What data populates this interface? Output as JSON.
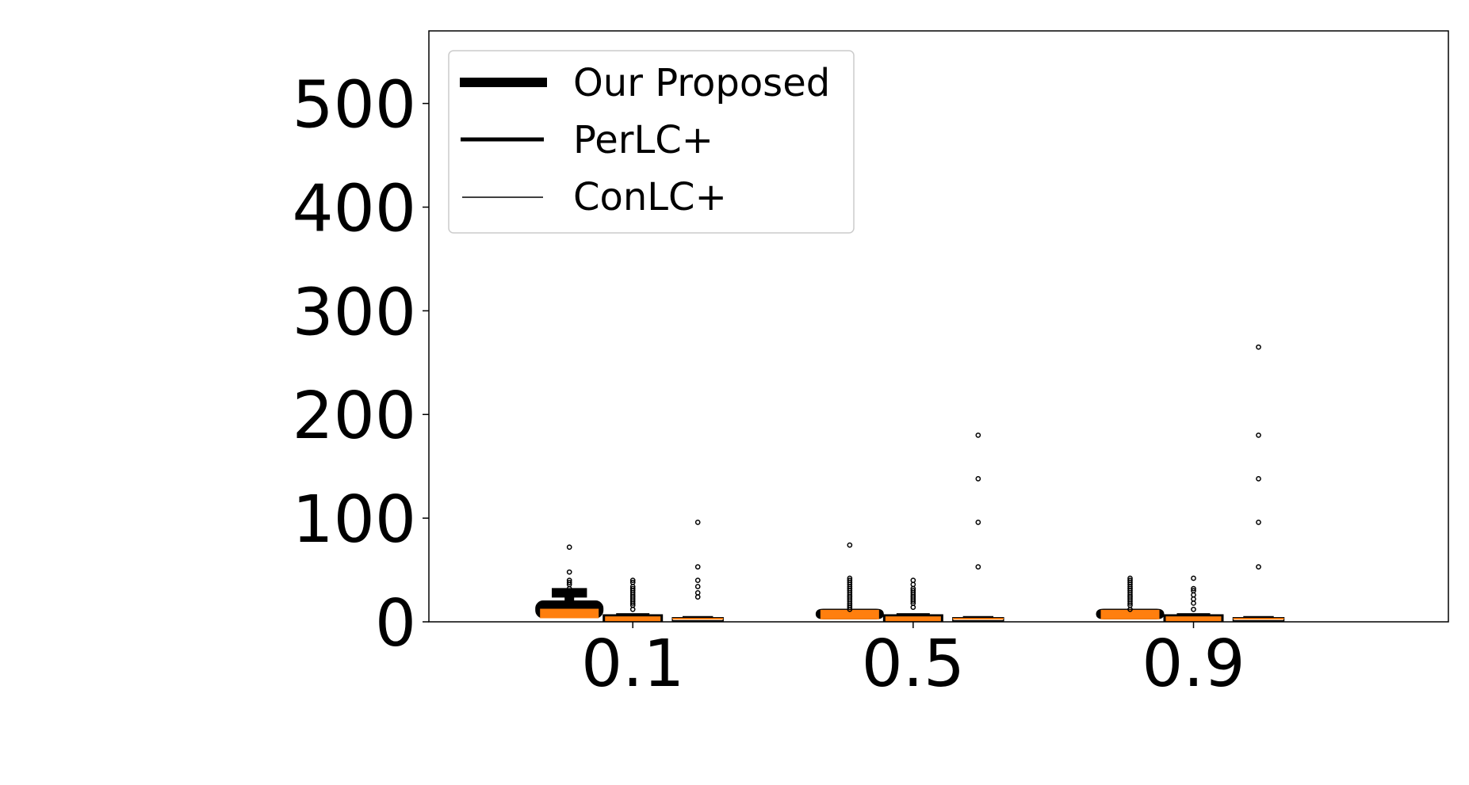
{
  "chart_data": {
    "type": "box",
    "categories": [
      "0.1",
      "0.5",
      "0.9"
    ],
    "ylim": [
      0,
      570
    ],
    "yticks": [
      "0",
      "100",
      "200",
      "300",
      "400",
      "500"
    ],
    "title": "",
    "xlabel": "",
    "ylabel": "",
    "grid": false,
    "legend_position": "top-left",
    "median_color": "#ff7f0e",
    "series": [
      {
        "name": "Our Proposed",
        "boxes": [
          {
            "q1": 8,
            "median": 8,
            "q3": 16,
            "whisker_low": 8,
            "whisker_high": 28,
            "fliers": [
              32,
              36,
              38,
              40,
              48,
              72
            ]
          },
          {
            "q1": 7,
            "median": 7,
            "q3": 8,
            "whisker_low": 7,
            "whisker_high": 8,
            "fliers": [
              12,
              14,
              16,
              18,
              20,
              22,
              24,
              26,
              28,
              30,
              32,
              34,
              36,
              38,
              40,
              42,
              74
            ]
          },
          {
            "q1": 7,
            "median": 7,
            "q3": 8,
            "whisker_low": 7,
            "whisker_high": 8,
            "fliers": [
              12,
              16,
              18,
              20,
              22,
              24,
              26,
              28,
              30,
              32,
              34,
              36,
              38,
              40,
              42
            ]
          }
        ]
      },
      {
        "name": "PerLC+",
        "boxes": [
          {
            "q1": 2,
            "median": 3,
            "q3": 5,
            "whisker_low": 0,
            "whisker_high": 6,
            "fliers": [
              12,
              16,
              18,
              20,
              22,
              24,
              26,
              28,
              30,
              32,
              34,
              38,
              40
            ]
          },
          {
            "q1": 2,
            "median": 3,
            "q3": 5,
            "whisker_low": 0,
            "whisker_high": 6,
            "fliers": [
              14,
              18,
              20,
              22,
              24,
              26,
              28,
              30,
              32,
              36,
              40
            ]
          },
          {
            "q1": 2,
            "median": 3,
            "q3": 5,
            "whisker_low": 0,
            "whisker_high": 6,
            "fliers": [
              12,
              18,
              22,
              26,
              30,
              32,
              42
            ]
          }
        ]
      },
      {
        "name": "ConLC+",
        "boxes": [
          {
            "q1": 1,
            "median": 3,
            "q3": 4,
            "whisker_low": 0,
            "whisker_high": 5,
            "fliers": [
              24,
              28,
              34,
              40,
              53,
              96
            ]
          },
          {
            "q1": 1,
            "median": 3,
            "q3": 4,
            "whisker_low": 0,
            "whisker_high": 5,
            "fliers": [
              53,
              96,
              138,
              180
            ]
          },
          {
            "q1": 1,
            "median": 3,
            "q3": 4,
            "whisker_low": 0,
            "whisker_high": 5,
            "fliers": [
              53,
              96,
              138,
              180,
              265
            ]
          }
        ]
      }
    ]
  }
}
